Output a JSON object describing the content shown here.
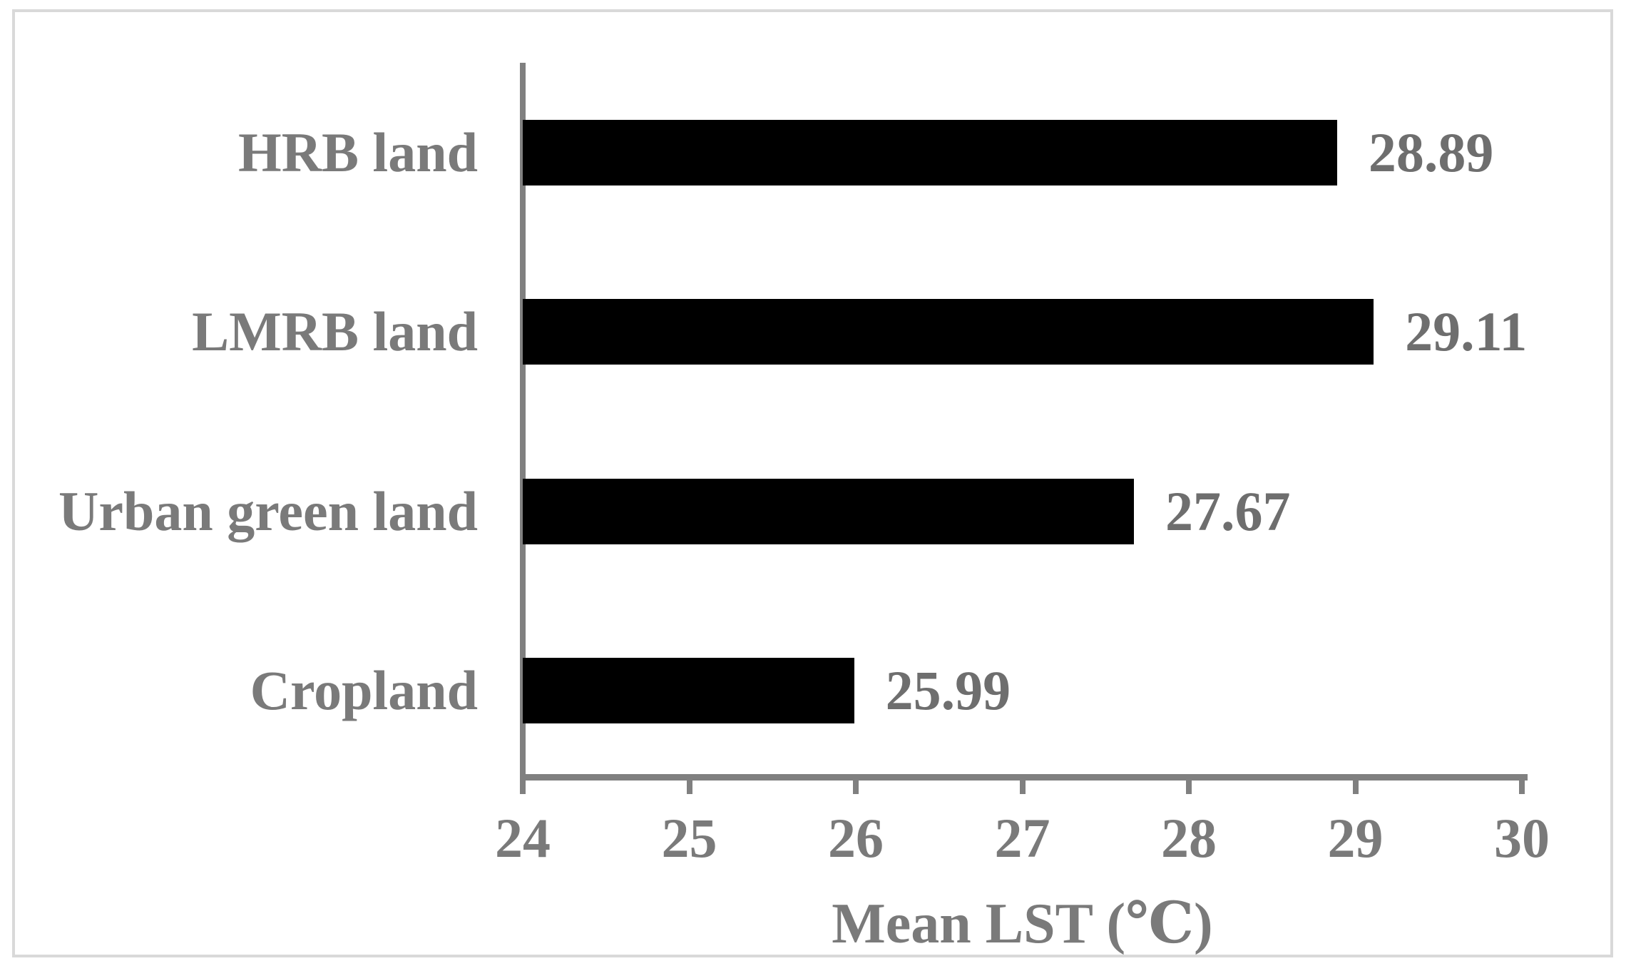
{
  "figure": {
    "background_color": "#ffffff",
    "border_color": "#d9d9d9"
  },
  "chart_data": {
    "type": "bar",
    "orientation": "horizontal",
    "title": "",
    "xlabel": "Mean LST (℃)",
    "ylabel": "",
    "categories": [
      "HRB land",
      "LMRB land",
      "Urban green land",
      "Cropland"
    ],
    "values": [
      28.89,
      29.11,
      27.67,
      25.99
    ],
    "value_labels": [
      "28.89",
      "29.11",
      "27.67",
      "25.99"
    ],
    "xlim": [
      24,
      30
    ],
    "xticks": [
      24,
      25,
      26,
      27,
      28,
      29,
      30
    ],
    "xtick_labels": [
      "24",
      "25",
      "26",
      "27",
      "28",
      "29",
      "30"
    ],
    "bar_color": "#000000",
    "label_text_color": "#7a7a7a",
    "value_text_color": "#6e6e6e",
    "axis_color": "#808080",
    "grid": false,
    "legend_position": "none"
  }
}
